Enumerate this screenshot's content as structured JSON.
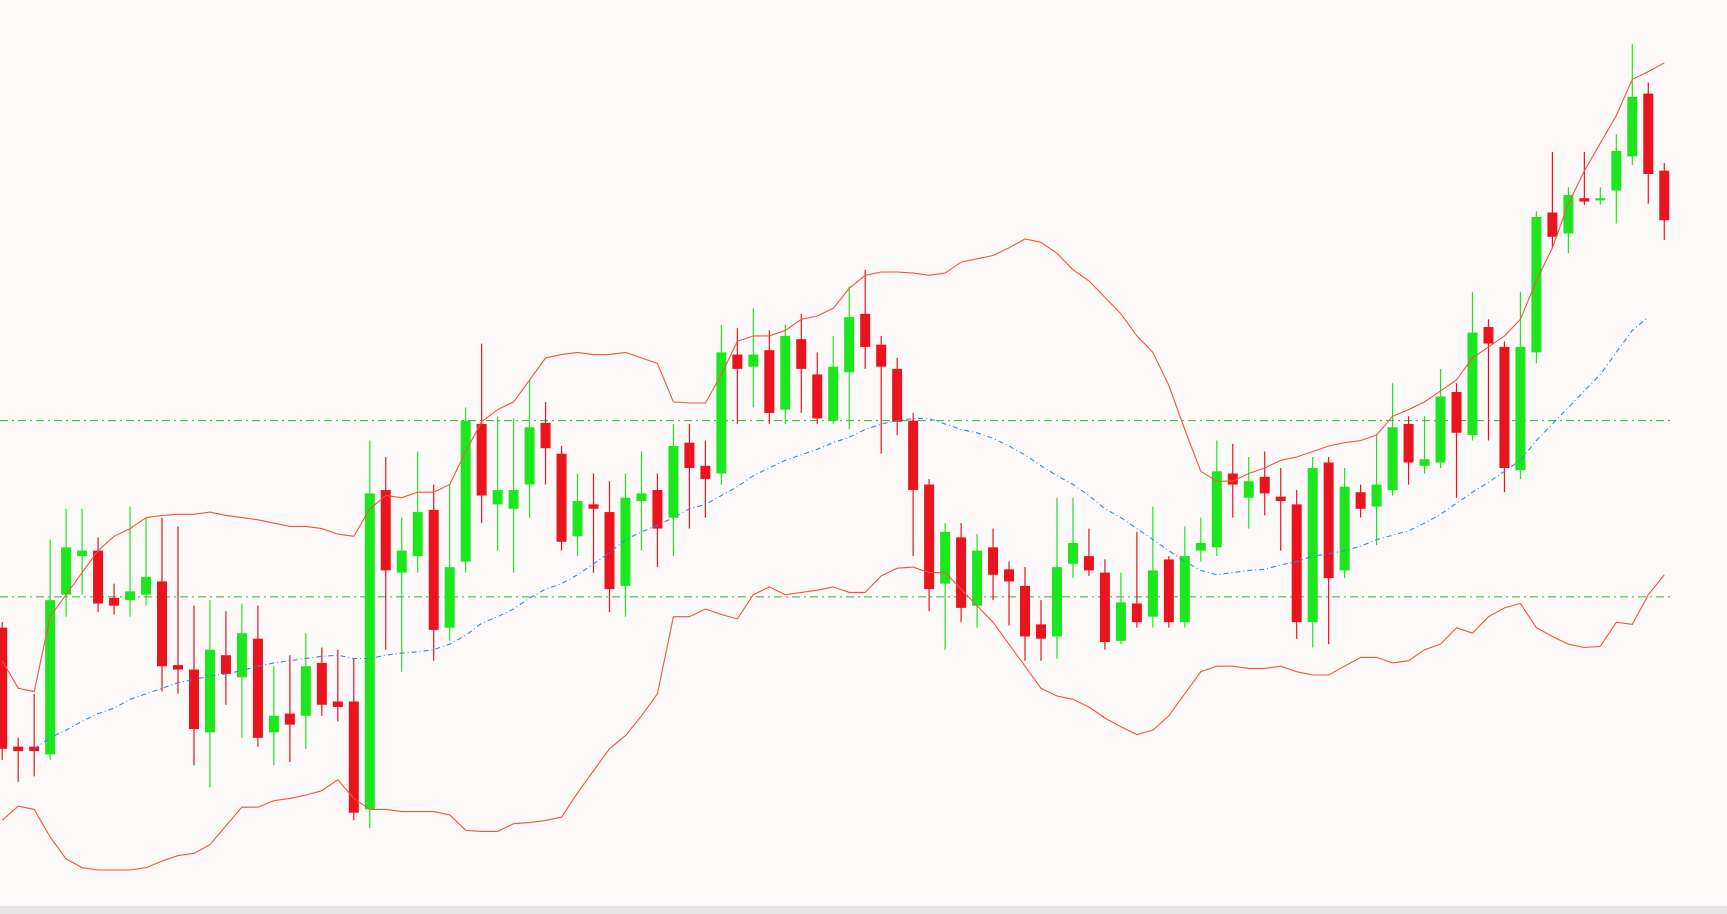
{
  "chart_data": {
    "type": "candlestick",
    "ylim": [
      0,
      830
    ],
    "up_color": "#1ee61e",
    "down_color": "#e8141e",
    "open": [
      260,
      152,
      152,
      145,
      290,
      325,
      330,
      287,
      285,
      290,
      302,
      226,
      222,
      165,
      235,
      215,
      250,
      165,
      182,
      180,
      228,
      193,
      193,
      95,
      385,
      310,
      325,
      367,
      260,
      320,
      445,
      372,
      368,
      390,
      446,
      418,
      343,
      372,
      365,
      298,
      375,
      385,
      360,
      428,
      407,
      400,
      508,
      497,
      512,
      458,
      522,
      490,
      448,
      492,
      545,
      517,
      495,
      448,
      390,
      300,
      342,
      280,
      333,
      313,
      298,
      263,
      252,
      318,
      325,
      310,
      248,
      282,
      270,
      322,
      265,
      330,
      333,
      400,
      378,
      397,
      379,
      372,
      265,
      410,
      312,
      383,
      370,
      385,
      445,
      407,
      410,
      474,
      435,
      533,
      515,
      403,
      510,
      637,
      618,
      650,
      648,
      657,
      688,
      745,
      675
    ],
    "high": [
      265,
      160,
      200,
      340,
      368,
      368,
      342,
      300,
      370,
      360,
      360,
      352,
      280,
      285,
      275,
      282,
      280,
      225,
      235,
      255,
      242,
      240,
      232,
      430,
      415,
      360,
      420,
      390,
      390,
      460,
      518,
      452,
      450,
      485,
      465,
      425,
      400,
      400,
      393,
      400,
      420,
      400,
      445,
      445,
      430,
      535,
      532,
      550,
      530,
      535,
      545,
      510,
      525,
      570,
      585,
      525,
      505,
      455,
      395,
      355,
      355,
      345,
      350,
      320,
      315,
      285,
      378,
      378,
      350,
      322,
      310,
      347,
      370,
      325,
      352,
      360,
      430,
      427,
      415,
      420,
      405,
      385,
      415,
      415,
      405,
      390,
      435,
      482,
      452,
      452,
      495,
      482,
      565,
      540,
      520,
      565,
      638,
      692,
      660,
      692,
      660,
      708,
      790,
      755,
      682
    ],
    "low": [
      140,
      120,
      125,
      140,
      270,
      290,
      274,
      272,
      270,
      280,
      202,
      200,
      135,
      115,
      190,
      160,
      152,
      135,
      138,
      150,
      180,
      175,
      85,
      78,
      240,
      220,
      310,
      230,
      248,
      310,
      355,
      330,
      310,
      360,
      390,
      330,
      325,
      310,
      274,
      270,
      330,
      315,
      325,
      350,
      360,
      390,
      445,
      460,
      445,
      445,
      455,
      445,
      445,
      440,
      495,
      418,
      435,
      325,
      275,
      240,
      265,
      260,
      285,
      262,
      230,
      230,
      232,
      305,
      307,
      240,
      245,
      260,
      260,
      260,
      260,
      320,
      325,
      360,
      350,
      362,
      330,
      250,
      242,
      245,
      305,
      360,
      335,
      380,
      390,
      400,
      405,
      378,
      430,
      430,
      383,
      395,
      500,
      605,
      600,
      644,
      644,
      627,
      680,
      645,
      612
    ],
    "close": [
      150,
      148,
      148,
      285,
      333,
      330,
      282,
      280,
      293,
      306,
      225,
      222,
      168,
      240,
      218,
      255,
      160,
      180,
      172,
      225,
      190,
      188,
      92,
      382,
      312,
      330,
      365,
      258,
      315,
      448,
      380,
      385,
      385,
      442,
      423,
      338,
      375,
      368,
      295,
      378,
      382,
      350,
      425,
      405,
      395,
      510,
      495,
      508,
      455,
      525,
      495,
      450,
      497,
      542,
      515,
      497,
      447,
      385,
      295,
      347,
      278,
      330,
      308,
      302,
      252,
      250,
      315,
      337,
      312,
      247,
      283,
      265,
      312,
      265,
      325,
      337,
      402,
      390,
      393,
      382,
      375,
      265,
      405,
      305,
      388,
      368,
      390,
      442,
      410,
      413,
      470,
      437,
      528,
      518,
      405,
      515,
      633,
      615,
      653,
      647,
      650,
      693,
      742,
      672,
      630
    ],
    "overlays": [
      {
        "color": "#f0553f",
        "style": "solid",
        "values": [
          230,
          205,
          202,
          270,
          290,
          310,
          330,
          343,
          350,
          360,
          362,
          363,
          363,
          365,
          362,
          360,
          358,
          355,
          352,
          352,
          350,
          345,
          343,
          368,
          380,
          378,
          383,
          383,
          390,
          420,
          447,
          458,
          465,
          485,
          505,
          508,
          510,
          508,
          508,
          510,
          505,
          500,
          465,
          464,
          464,
          490,
          520,
          525,
          525,
          530,
          540,
          543,
          550,
          568,
          580,
          583,
          583,
          582,
          580,
          582,
          592,
          595,
          598,
          605,
          613,
          610,
          600,
          585,
          575,
          560,
          545,
          525,
          510,
          480,
          440,
          402,
          393,
          393,
          400,
          405,
          412,
          415,
          420,
          425,
          428,
          430,
          435,
          452,
          458,
          465,
          475,
          485,
          505,
          515,
          525,
          540,
          575,
          605,
          645,
          675,
          700,
          725,
          758,
          765,
          773
        ]
      },
      {
        "color": "#2a8de0",
        "style": "dashed",
        "values": [
          null,
          null,
          150,
          160,
          167,
          175,
          182,
          187,
          195,
          200,
          205,
          210,
          213,
          216,
          218,
          221,
          225,
          228,
          230,
          232,
          234,
          235,
          232,
          232,
          235,
          237,
          238,
          240,
          245,
          253,
          264,
          270,
          277,
          287,
          295,
          300,
          308,
          318,
          328,
          340,
          347,
          353,
          360,
          368,
          372,
          380,
          388,
          398,
          405,
          412,
          417,
          422,
          428,
          433,
          440,
          445,
          448,
          450,
          450,
          445,
          440,
          437,
          432,
          425,
          417,
          407,
          398,
          390,
          380,
          368,
          360,
          350,
          340,
          330,
          320,
          312,
          308,
          310,
          312,
          313,
          317,
          320,
          325,
          327,
          330,
          334,
          340,
          344,
          348,
          355,
          363,
          373,
          383,
          392,
          402,
          412,
          430,
          445,
          460,
          475,
          490,
          510,
          530,
          542,
          null
        ]
      },
      {
        "color": "#f0553f",
        "style": "solid",
        "values": [
          85,
          98,
          95,
          70,
          50,
          42,
          40,
          40,
          40,
          42,
          48,
          53,
          55,
          63,
          80,
          97,
          97,
          103,
          105,
          108,
          112,
          122,
          105,
          95,
          95,
          93,
          93,
          93,
          90,
          76,
          75,
          75,
          82,
          83,
          85,
          88,
          110,
          130,
          150,
          162,
          180,
          200,
          270,
          270,
          277,
          272,
          268,
          290,
          297,
          290,
          292,
          294,
          297,
          292,
          292,
          307,
          314,
          315,
          310,
          310,
          295,
          280,
          265,
          245,
          225,
          205,
          198,
          195,
          188,
          178,
          170,
          163,
          167,
          180,
          200,
          220,
          225,
          225,
          223,
          223,
          225,
          220,
          217,
          217,
          225,
          233,
          233,
          228,
          230,
          240,
          245,
          260,
          255,
          270,
          278,
          282,
          260,
          252,
          245,
          242,
          243,
          265,
          263,
          290,
          308
        ]
      }
    ],
    "hlines": [
      448,
      288
    ],
    "hline_color": "#2fb52f"
  }
}
